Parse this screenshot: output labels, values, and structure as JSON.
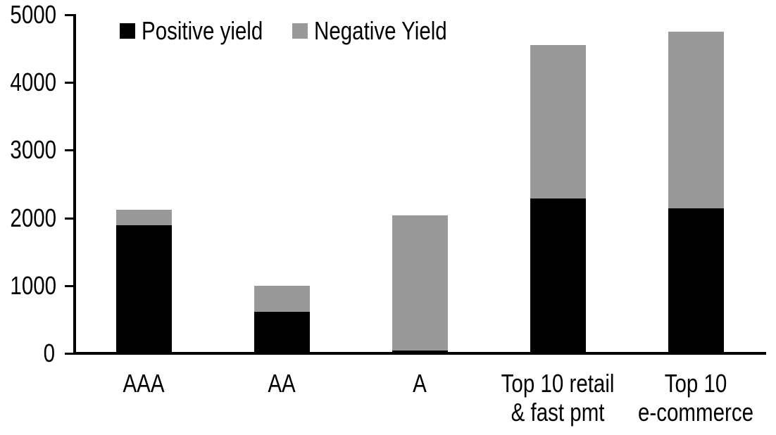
{
  "chart_data": {
    "type": "bar",
    "subtype": "stacked",
    "title": "",
    "xlabel": "",
    "ylabel": "",
    "categories": [
      "AAA",
      "AA",
      "A",
      "Top 10 retail\n& fast pmt",
      "Top 10\ne-commerce"
    ],
    "series": [
      {
        "name": "Positive yield",
        "color": "#000000",
        "values": [
          1890,
          610,
          40,
          2290,
          2140
        ]
      },
      {
        "name": "Negative Yield",
        "color": "#999999",
        "values": [
          235,
          390,
          2000,
          2260,
          2610
        ]
      }
    ],
    "stacked_totals": [
      2125,
      1000,
      2040,
      4550,
      4750
    ],
    "ylim": [
      0,
      5000
    ],
    "yticks": [
      0,
      1000,
      2000,
      3000,
      4000,
      5000
    ],
    "grid": false,
    "legend_position": "top-inside",
    "axis_color": "#000000",
    "background_color": "#ffffff"
  }
}
